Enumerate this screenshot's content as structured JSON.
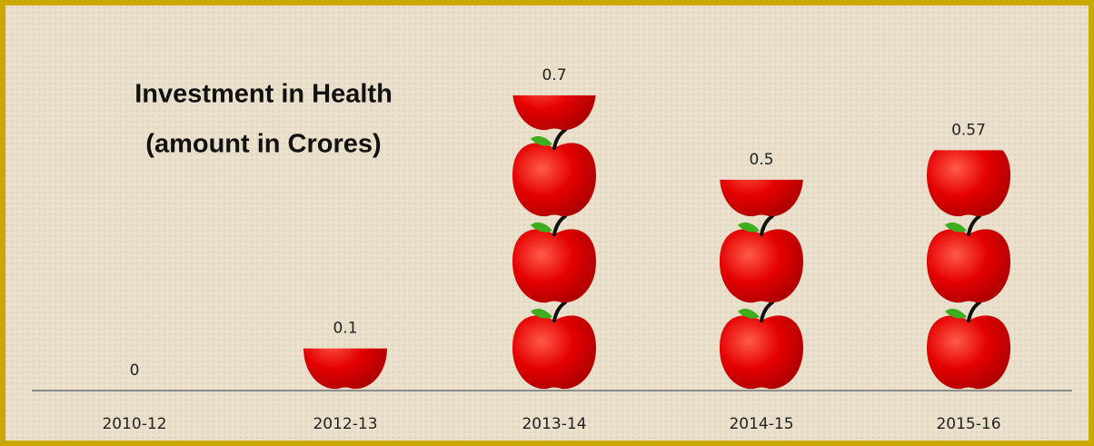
{
  "chart_data": {
    "type": "pictograph",
    "title_lines": [
      "Investment in Health",
      "(amount in Crores)"
    ],
    "categories": [
      "2010-12",
      "2012-13",
      "2013-14",
      "2014-15",
      "2015-16"
    ],
    "values": [
      0,
      0.1,
      0.7,
      0.5,
      0.57
    ]
  }
}
